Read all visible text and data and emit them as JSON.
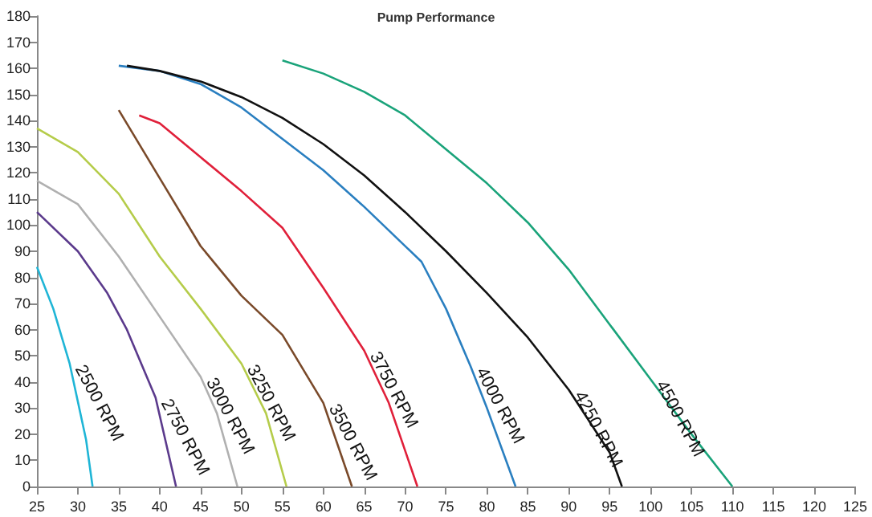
{
  "chart_data": {
    "type": "line",
    "title": "Pump Performance",
    "legend": false,
    "grid": false,
    "marker": "none",
    "line_style": "solid",
    "xlim": [
      25,
      125
    ],
    "xticks": [
      25,
      30,
      35,
      40,
      45,
      50,
      55,
      60,
      65,
      70,
      75,
      80,
      85,
      90,
      95,
      100,
      105,
      110,
      115,
      120,
      125
    ],
    "ylim": [
      0,
      180
    ],
    "yticks": [
      0,
      10,
      20,
      30,
      40,
      50,
      60,
      70,
      80,
      90,
      100,
      110,
      120,
      130,
      140,
      150,
      160,
      170,
      180
    ],
    "series": [
      {
        "name": "2500 RPM",
        "color": "#1fb5d6",
        "x": [
          25,
          27,
          29,
          31,
          31.8
        ],
        "values": [
          84,
          68,
          47,
          18,
          0
        ]
      },
      {
        "name": "2750 RPM",
        "color": "#5b3a8c",
        "x": [
          25,
          30,
          33.6,
          36,
          39.5,
          42
        ],
        "values": [
          105,
          90,
          74,
          60,
          34,
          0
        ]
      },
      {
        "name": "3000 RPM",
        "color": "#b0b0b0",
        "x": [
          25,
          30,
          35,
          40,
          45,
          47,
          49.5
        ],
        "values": [
          117,
          108,
          88,
          65,
          42,
          28,
          0
        ]
      },
      {
        "name": "3250 RPM",
        "color": "#b5cc4a",
        "x": [
          25,
          30,
          35,
          40,
          45,
          50,
          53,
          55.5
        ],
        "values": [
          137,
          128,
          112,
          88,
          68,
          47,
          28,
          0
        ]
      },
      {
        "name": "3500 RPM",
        "color": "#7a4a2a",
        "x": [
          35,
          40,
          45,
          50,
          55,
          60,
          63.5
        ],
        "values": [
          144,
          118,
          92,
          73,
          58,
          32,
          0
        ]
      },
      {
        "name": "3750 RPM",
        "color": "#e0203a",
        "x": [
          37.5,
          40,
          45,
          50,
          55,
          60,
          65,
          68,
          71.5
        ],
        "values": [
          142,
          139,
          126,
          113,
          99,
          76,
          52,
          32,
          0
        ]
      },
      {
        "name": "4000 RPM",
        "color": "#2a7fc0",
        "x": [
          35,
          40,
          45,
          50,
          55,
          60,
          65,
          72,
          75,
          78,
          80,
          83.5
        ],
        "values": [
          161,
          159,
          154,
          145,
          133,
          121,
          107,
          86,
          68,
          46,
          30,
          0
        ]
      },
      {
        "name": "4250 RPM",
        "color": "#111111",
        "x": [
          36,
          40,
          45,
          50,
          55,
          60,
          65,
          70,
          75,
          80,
          85,
          90,
          95,
          96.5
        ],
        "values": [
          161,
          159,
          155,
          149,
          141,
          131,
          119,
          105,
          90,
          74,
          57,
          37,
          13,
          0
        ]
      },
      {
        "name": "4500 RPM",
        "color": "#1aa37a",
        "x": [
          55,
          60,
          65,
          70,
          75,
          80,
          85,
          90,
          95,
          100,
          105,
          110
        ],
        "values": [
          163,
          158,
          151,
          142,
          129,
          116,
          101,
          83,
          62,
          41,
          20,
          0
        ]
      }
    ]
  }
}
